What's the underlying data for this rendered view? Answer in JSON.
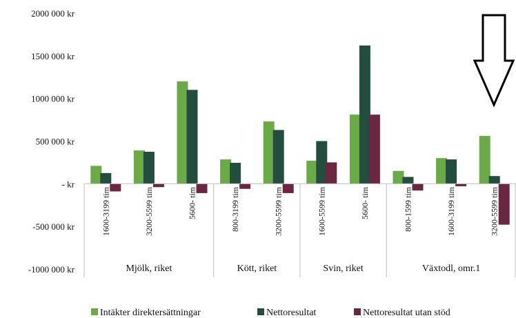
{
  "chart_data": {
    "type": "bar",
    "title": "",
    "xlabel": "",
    "ylabel": "",
    "ylim": [
      -1000000,
      2000000
    ],
    "yticks": [
      {
        "value": 2000000,
        "label": "2000 000 kr"
      },
      {
        "value": 1500000,
        "label": "1500 000 kr"
      },
      {
        "value": 1000000,
        "label": "1000 000 kr"
      },
      {
        "value": 500000,
        "label": "500 000 kr"
      },
      {
        "value": 0,
        "label": "-   kr"
      },
      {
        "value": -500000,
        "label": "-500 000 kr"
      },
      {
        "value": -1000000,
        "label": "-1000 000 kr"
      }
    ],
    "grid": false,
    "legend_position": "bottom",
    "categories": [
      "1600-3199 tim",
      "3200-5599 tim",
      "5600- tim",
      "800-3199 tim",
      "3200-5599 tim",
      "1600-5599 tim",
      "5600- tim",
      "800-1599 tim",
      "1600-3199 tim",
      "3200-5599 tim"
    ],
    "groups": [
      {
        "label": "Mjölk,  riket",
        "count": 3
      },
      {
        "label": "Kött, riket",
        "count": 2
      },
      {
        "label": "Svin, riket",
        "count": 2
      },
      {
        "label": "Växtodl, omr.1",
        "count": 3
      }
    ],
    "series": [
      {
        "name": "Intäkter direktersättningar",
        "color": "#6aaa47",
        "values": [
          210000,
          390000,
          1200000,
          285000,
          730000,
          270000,
          810000,
          150000,
          300000,
          560000
        ]
      },
      {
        "name": "Nettoresultat",
        "color": "#234d3f",
        "values": [
          125000,
          375000,
          1100000,
          245000,
          630000,
          500000,
          1620000,
          80000,
          285000,
          90000
        ]
      },
      {
        "name": "Nettoresultat utan stöd",
        "color": "#6b2742",
        "values": [
          -90000,
          -40000,
          -110000,
          -60000,
          -110000,
          250000,
          810000,
          -80000,
          -30000,
          -480000
        ]
      }
    ],
    "annotations": [
      {
        "type": "arrow",
        "icon": "down-arrow-icon",
        "direction": "down"
      }
    ]
  }
}
